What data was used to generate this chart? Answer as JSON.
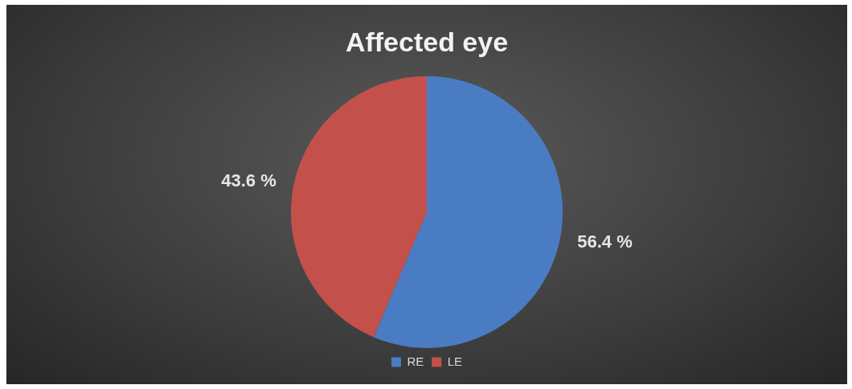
{
  "chart_data": {
    "type": "pie",
    "title": "Affected eye",
    "categories": [
      "RE",
      "LE"
    ],
    "values": [
      56.4,
      43.6
    ],
    "colors": [
      "#4a7cc3",
      "#c4504c"
    ],
    "value_labels": [
      "56.4 %",
      "43.6 %"
    ],
    "legend": "bottom"
  }
}
